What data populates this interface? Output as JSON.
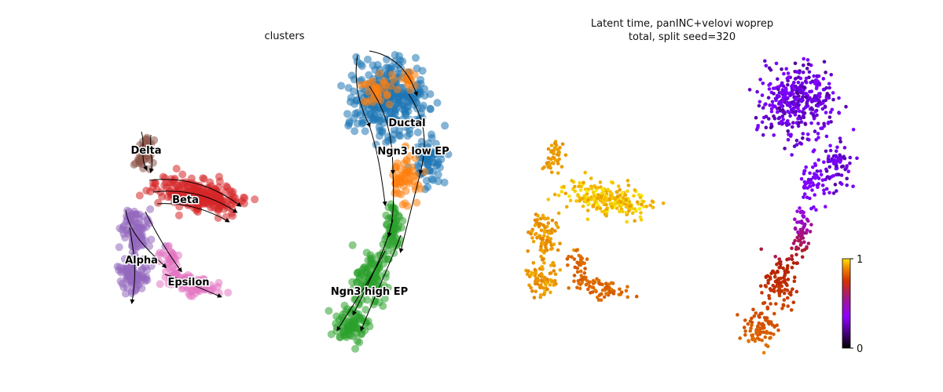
{
  "chart_data": [
    {
      "type": "scatter",
      "title": "clusters",
      "subtitle": "",
      "xlabel": "",
      "ylabel": "",
      "grid": false,
      "velocity_stream": true,
      "clusters": [
        {
          "name": "Delta",
          "color": "#8c564b"
        },
        {
          "name": "Beta",
          "color": "#d62728"
        },
        {
          "name": "Alpha",
          "color": "#9467bd"
        },
        {
          "name": "Epsilon",
          "color": "#e377c2"
        },
        {
          "name": "Ductal",
          "color": "#1f77b4"
        },
        {
          "name": "Ngn3 low EP",
          "color": "#ff7f0e"
        },
        {
          "name": "Ngn3 high EP",
          "color": "#2ca02c"
        }
      ]
    },
    {
      "type": "scatter",
      "title": "Latent time, panINC+velovi woprep",
      "subtitle": "total, split seed=320",
      "xlabel": "",
      "ylabel": "",
      "grid": false,
      "colormap": "gnuplot",
      "colorbar": {
        "min": 0,
        "max": 1,
        "ticks": [
          "1",
          "0"
        ]
      }
    }
  ]
}
